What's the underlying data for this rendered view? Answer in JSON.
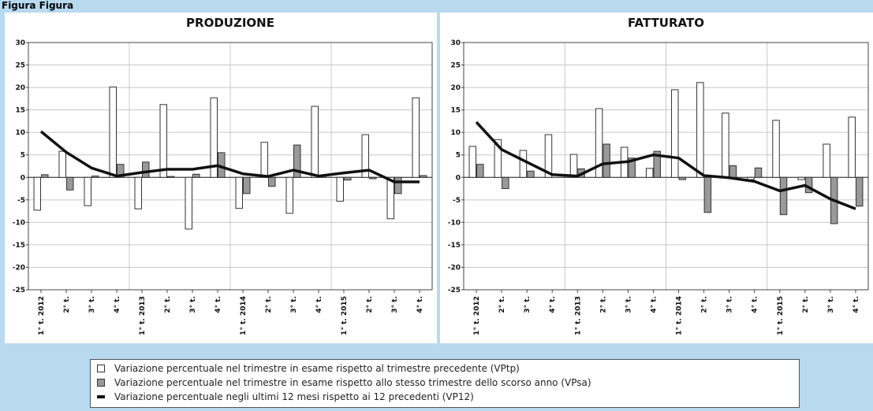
{
  "header": {
    "top_label": "Figura Figura"
  },
  "legend": {
    "vptp": "Variazione percentuale nel trimestre in esame rispetto al trimestre precedente (VPtp)",
    "vpsa": "Variazione percentuale nel trimestre in esame rispetto allo stesso trimestre dello scorso anno (VPsa)",
    "vp12": "Variazione percentuale negli ultimi 12 mesi rispetto ai 12 precedenti (VP12)"
  },
  "colors": {
    "vptp": "#ffffff",
    "vpsa": "#999999",
    "vp12": "#111111"
  },
  "chart_data": [
    {
      "type": "bar",
      "title": "PRODUZIONE",
      "categories": [
        "1° t. 2012",
        "2° t.",
        "3° t.",
        "4° t.",
        "1° t. 2013",
        "2° t.",
        "3° t.",
        "4° t.",
        "1° t. 2014",
        "2° t.",
        "3° t.",
        "4° t.",
        "1° t. 2015",
        "2° t.",
        "3° t.",
        "4° t."
      ],
      "ylim": [
        -25,
        30
      ],
      "yticks": [
        30,
        25,
        20,
        15,
        10,
        5,
        0,
        -5,
        -10,
        -15,
        -20,
        -25
      ],
      "series": [
        {
          "name": "VPtp",
          "values": [
            -7.3,
            5.8,
            -6.3,
            20.1,
            -7.0,
            16.2,
            -11.5,
            17.7,
            -6.9,
            7.8,
            -8.0,
            15.8,
            -5.3,
            9.5,
            -9.2,
            17.7
          ]
        },
        {
          "name": "VPsa",
          "values": [
            0.6,
            -2.8,
            0.3,
            2.9,
            3.4,
            0.2,
            0.7,
            5.5,
            -3.6,
            -2.0,
            7.2,
            0.3,
            -0.6,
            -0.3,
            -3.6,
            0.4
          ]
        },
        {
          "name": "VP12",
          "values": [
            10.2,
            5.6,
            2.1,
            0.3,
            1.1,
            1.8,
            1.8,
            2.6,
            0.8,
            0.2,
            1.6,
            0.3,
            1.0,
            1.6,
            -1.0,
            -1.0
          ]
        }
      ],
      "grid": true
    },
    {
      "type": "bar",
      "title": "FATTURATO",
      "categories": [
        "1° t. 2012",
        "2° t.",
        "3° t.",
        "4° t.",
        "1° t. 2013",
        "2° t.",
        "3° t.",
        "4° t.",
        "1° t. 2014",
        "2° t.",
        "3° t.",
        "4° t.",
        "1° t. 2015",
        "2° t.",
        "3° t.",
        "4° t."
      ],
      "ylim": [
        -25,
        30
      ],
      "yticks": [
        30,
        25,
        20,
        15,
        10,
        5,
        0,
        -5,
        -10,
        -15,
        -20,
        -25
      ],
      "series": [
        {
          "name": "VPtp",
          "values": [
            6.9,
            8.4,
            6.0,
            9.5,
            5.1,
            15.3,
            6.7,
            2.0,
            19.5,
            21.1,
            14.3,
            -0.5,
            12.7,
            -0.5,
            7.4,
            13.4
          ]
        },
        {
          "name": "VPsa",
          "values": [
            2.9,
            -2.5,
            1.4,
            0.0,
            1.9,
            7.4,
            4.3,
            5.8,
            -0.5,
            -7.8,
            2.6,
            2.1,
            -8.3,
            -3.4,
            -10.3,
            -6.4
          ]
        },
        {
          "name": "VP12",
          "values": [
            12.3,
            6.2,
            3.4,
            0.6,
            0.3,
            3.0,
            3.5,
            5.0,
            4.3,
            0.4,
            -0.1,
            -0.9,
            -3.0,
            -1.8,
            -4.8,
            -7.0
          ]
        }
      ],
      "grid": true
    }
  ]
}
